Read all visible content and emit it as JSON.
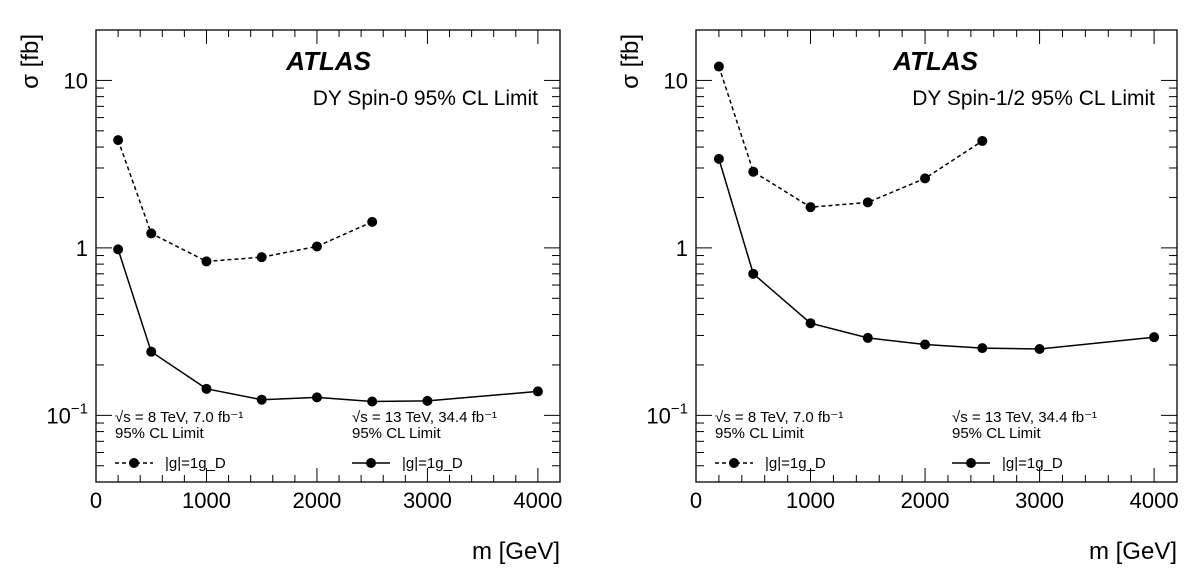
{
  "chart_data": [
    {
      "type": "line",
      "title": "ATLAS",
      "subtitle": "DY Spin-0 95% CL Limit",
      "xlabel": "m [GeV]",
      "ylabel": "σ [fb]",
      "x_scale": "linear",
      "y_scale": "log",
      "xlim": [
        0,
        4200
      ],
      "ylim": [
        0.04,
        20
      ],
      "xticks": [
        "0",
        "1000",
        "2000",
        "3000",
        "4000"
      ],
      "yticks": [
        {
          "value": 0.1,
          "base": "10",
          "exp": "−1"
        },
        {
          "value": 1,
          "base": "1",
          "exp": ""
        },
        {
          "value": 10,
          "base": "10",
          "exp": ""
        }
      ],
      "series": [
        {
          "style": "dashed",
          "x": [
            200,
            500,
            1000,
            1500,
            2000,
            2500
          ],
          "y": [
            4.4,
            1.22,
            0.83,
            0.88,
            1.02,
            1.43
          ],
          "legend_header": [
            "√s = 8 TeV, 7.0 fb⁻¹",
            "95% CL Limit"
          ],
          "legend_label": "|g|=1g_D",
          "legend_position": "bottom-left"
        },
        {
          "style": "solid",
          "x": [
            200,
            500,
            1000,
            1500,
            2000,
            2500,
            3000,
            4000
          ],
          "y": [
            0.98,
            0.24,
            0.144,
            0.124,
            0.128,
            0.121,
            0.122,
            0.139
          ],
          "legend_header": [
            "√s = 13 TeV, 34.4 fb⁻¹",
            "95% CL Limit"
          ],
          "legend_label": "|g|=1g_D",
          "legend_position": "bottom-center"
        }
      ]
    },
    {
      "type": "line",
      "title": "ATLAS",
      "subtitle": "DY Spin-1/2 95% CL Limit",
      "xlabel": "m [GeV]",
      "ylabel": "σ [fb]",
      "x_scale": "linear",
      "y_scale": "log",
      "xlim": [
        0,
        4200
      ],
      "ylim": [
        0.04,
        20
      ],
      "xticks": [
        "0",
        "1000",
        "2000",
        "3000",
        "4000"
      ],
      "yticks": [
        {
          "value": 0.1,
          "base": "10",
          "exp": "−1"
        },
        {
          "value": 1,
          "base": "1",
          "exp": ""
        },
        {
          "value": 10,
          "base": "10",
          "exp": ""
        }
      ],
      "series": [
        {
          "style": "dashed",
          "x": [
            200,
            500,
            1000,
            1500,
            2000,
            2500
          ],
          "y": [
            12.1,
            2.85,
            1.75,
            1.87,
            2.6,
            4.35
          ],
          "legend_header": [
            "√s = 8 TeV, 7.0 fb⁻¹",
            "95% CL Limit"
          ],
          "legend_label": "|g|=1g_D",
          "legend_position": "bottom-left"
        },
        {
          "style": "solid",
          "x": [
            200,
            500,
            1000,
            1500,
            2000,
            2500,
            3000,
            4000
          ],
          "y": [
            3.4,
            0.7,
            0.355,
            0.29,
            0.265,
            0.252,
            0.249,
            0.293
          ],
          "legend_header": [
            "√s = 13 TeV, 34.4 fb⁻¹",
            "95% CL Limit"
          ],
          "legend_label": "|g|=1g_D",
          "legend_position": "bottom-center"
        }
      ]
    }
  ],
  "colors": {
    "ink": "#000000",
    "background": "#ffffff"
  }
}
